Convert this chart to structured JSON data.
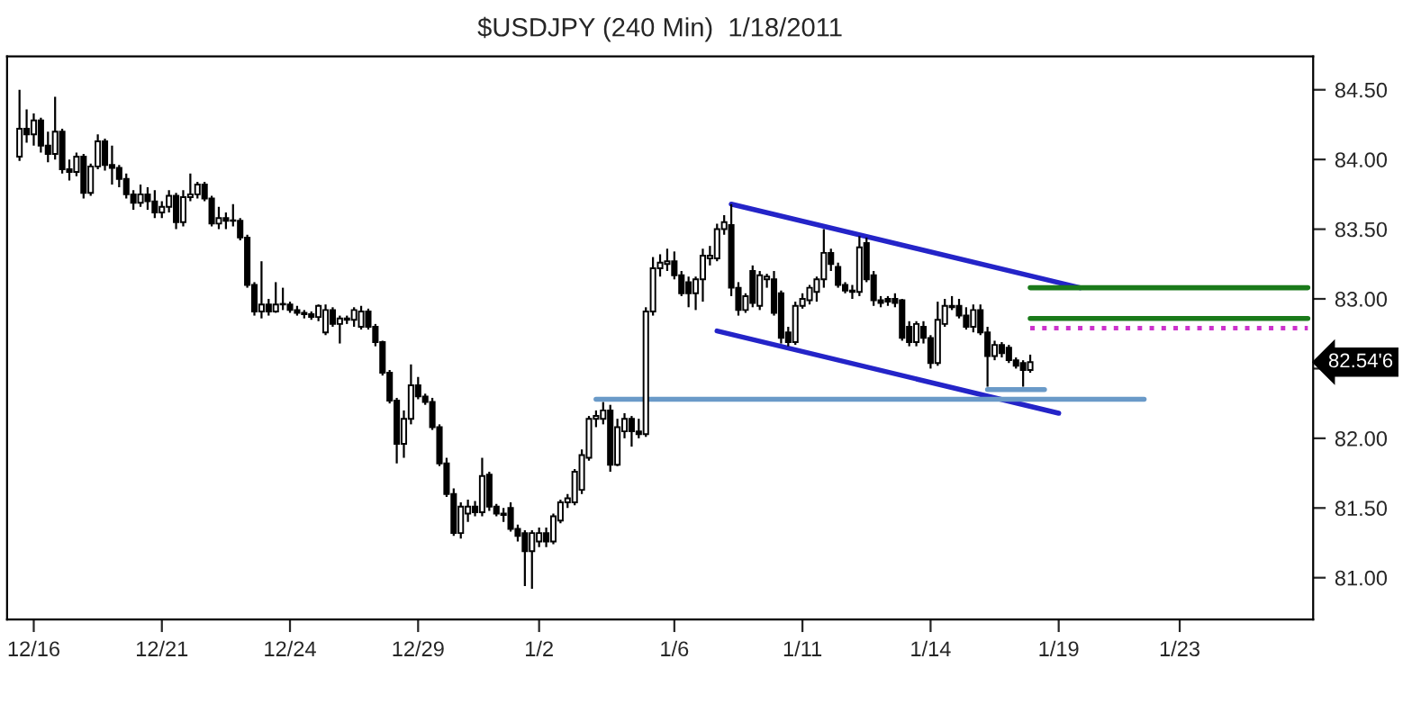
{
  "chart_data": {
    "type": "candlestick",
    "title": "$USDJPY (240 Min)  1/18/2011",
    "categories": [
      null,
      null,
      "12/16",
      null,
      null,
      null,
      null,
      null,
      null,
      null,
      null,
      null,
      null,
      null,
      null,
      null,
      null,
      null,
      null,
      null,
      "12/21",
      null,
      null,
      null,
      null,
      null,
      null,
      null,
      null,
      null,
      null,
      null,
      null,
      null,
      null,
      null,
      null,
      null,
      "12/24",
      null,
      null,
      null,
      null,
      null,
      null,
      null,
      null,
      null,
      null,
      null,
      null,
      null,
      null,
      null,
      null,
      null,
      "12/29",
      null,
      null,
      null,
      null,
      null,
      null,
      null,
      null,
      null,
      null,
      null,
      null,
      null,
      null,
      null,
      null,
      "1/2",
      null,
      null,
      null,
      null,
      null,
      null,
      null,
      null,
      null,
      null,
      null,
      null,
      null,
      null,
      null,
      null,
      null,
      null,
      "1/6",
      null,
      null,
      null,
      null,
      null,
      null,
      null,
      null,
      null,
      null,
      null,
      null,
      null,
      null,
      null,
      null,
      null,
      "1/11",
      null,
      null,
      null,
      null,
      null,
      null,
      null,
      null,
      null,
      null,
      null,
      null,
      null,
      null,
      null,
      null,
      null,
      "1/14",
      null,
      null,
      null,
      null,
      null,
      null,
      null,
      null,
      null,
      null,
      null,
      null,
      null,
      null,
      null,
      null,
      null,
      "1/19",
      null,
      null,
      null,
      null,
      null,
      null,
      null,
      null,
      null,
      null,
      null,
      null,
      null,
      null,
      null,
      null,
      "1/23",
      null,
      null,
      null,
      null,
      null,
      null,
      null,
      null,
      null,
      null,
      null,
      null,
      null,
      null,
      null,
      null,
      null,
      null
    ],
    "ohlc": [
      [
        84.02,
        84.5,
        83.99,
        84.22
      ],
      [
        84.22,
        84.36,
        84.12,
        84.18
      ],
      [
        84.18,
        84.33,
        84.1,
        84.28
      ],
      [
        84.28,
        84.3,
        84.05,
        84.1
      ],
      [
        84.1,
        84.2,
        83.98,
        84.04
      ],
      [
        84.04,
        84.45,
        84.0,
        84.2
      ],
      [
        84.2,
        84.22,
        83.9,
        83.93
      ],
      [
        83.93,
        84.0,
        83.85,
        83.91
      ],
      [
        83.91,
        84.05,
        83.88,
        84.02
      ],
      [
        84.02,
        84.04,
        83.72,
        83.76
      ],
      [
        83.76,
        83.97,
        83.74,
        83.95
      ],
      [
        83.95,
        84.18,
        83.93,
        84.13
      ],
      [
        84.13,
        84.15,
        83.92,
        83.96
      ],
      [
        83.96,
        84.1,
        83.82,
        83.94
      ],
      [
        83.94,
        83.96,
        83.8,
        83.86
      ],
      [
        83.86,
        83.9,
        83.72,
        83.75
      ],
      [
        83.75,
        83.78,
        83.64,
        83.69
      ],
      [
        83.69,
        83.82,
        83.66,
        83.75
      ],
      [
        83.75,
        83.8,
        83.64,
        83.7
      ],
      [
        83.7,
        83.78,
        83.58,
        83.62
      ],
      [
        83.62,
        83.7,
        83.58,
        83.66
      ],
      [
        83.66,
        83.78,
        83.62,
        83.74
      ],
      [
        83.74,
        83.76,
        83.5,
        83.55
      ],
      [
        83.55,
        83.78,
        83.52,
        83.73
      ],
      [
        83.73,
        83.9,
        83.7,
        83.75
      ],
      [
        83.75,
        83.84,
        83.72,
        83.82
      ],
      [
        83.82,
        83.84,
        83.7,
        83.72
      ],
      [
        83.72,
        83.74,
        83.52,
        83.54
      ],
      [
        83.54,
        83.66,
        83.5,
        83.58
      ],
      [
        83.58,
        83.62,
        83.5,
        83.56
      ],
      [
        83.56,
        83.68,
        83.52,
        83.56
      ],
      [
        83.56,
        83.58,
        83.42,
        83.44
      ],
      [
        83.44,
        83.46,
        83.08,
        83.1
      ],
      [
        83.1,
        83.12,
        82.88,
        82.91
      ],
      [
        82.91,
        83.27,
        82.86,
        82.96
      ],
      [
        82.96,
        83.0,
        82.88,
        82.91
      ],
      [
        82.91,
        83.12,
        82.9,
        82.96
      ],
      [
        82.96,
        83.08,
        82.92,
        82.96
      ],
      [
        82.96,
        82.98,
        82.9,
        82.92
      ],
      [
        82.92,
        82.95,
        82.88,
        82.9
      ],
      [
        82.9,
        82.92,
        82.86,
        82.89
      ],
      [
        82.89,
        82.91,
        82.85,
        82.87
      ],
      [
        82.87,
        82.96,
        82.84,
        82.95
      ],
      [
        82.76,
        82.96,
        82.74,
        82.92
      ],
      [
        82.92,
        82.94,
        82.8,
        82.82
      ],
      [
        82.82,
        82.88,
        82.68,
        82.86
      ],
      [
        82.86,
        82.88,
        82.82,
        82.85
      ],
      [
        82.85,
        82.94,
        82.8,
        82.92
      ],
      [
        82.8,
        82.95,
        82.78,
        82.91
      ],
      [
        82.91,
        82.93,
        82.78,
        82.8
      ],
      [
        82.8,
        82.82,
        82.66,
        82.69
      ],
      [
        82.69,
        82.7,
        82.45,
        82.47
      ],
      [
        82.47,
        82.49,
        82.25,
        82.27
      ],
      [
        82.27,
        82.29,
        81.82,
        81.96
      ],
      [
        81.96,
        82.2,
        81.86,
        82.14
      ],
      [
        82.14,
        82.53,
        82.1,
        82.38
      ],
      [
        82.38,
        82.44,
        82.28,
        82.3
      ],
      [
        82.3,
        82.32,
        82.24,
        82.26
      ],
      [
        82.26,
        82.29,
        82.06,
        82.08
      ],
      [
        82.08,
        82.1,
        81.8,
        81.82
      ],
      [
        81.82,
        81.86,
        81.58,
        81.6
      ],
      [
        81.6,
        81.64,
        81.3,
        81.32
      ],
      [
        81.32,
        81.54,
        81.28,
        81.51
      ],
      [
        81.46,
        81.56,
        81.4,
        81.51
      ],
      [
        81.51,
        81.55,
        81.44,
        81.47
      ],
      [
        81.47,
        81.86,
        81.44,
        81.73
      ],
      [
        81.74,
        81.76,
        81.48,
        81.51
      ],
      [
        81.51,
        81.53,
        81.44,
        81.46
      ],
      [
        81.46,
        81.5,
        81.4,
        81.45
      ],
      [
        81.5,
        81.54,
        81.33,
        81.35
      ],
      [
        81.35,
        81.38,
        81.26,
        81.3
      ],
      [
        81.32,
        81.34,
        80.94,
        81.19
      ],
      [
        81.19,
        81.34,
        80.92,
        81.32
      ],
      [
        81.26,
        81.36,
        81.22,
        81.32
      ],
      [
        81.32,
        81.36,
        81.22,
        81.26
      ],
      [
        81.26,
        81.46,
        81.24,
        81.44
      ],
      [
        81.41,
        81.56,
        81.39,
        81.54
      ],
      [
        81.54,
        81.6,
        81.5,
        81.57
      ],
      [
        81.54,
        81.78,
        81.52,
        81.76
      ],
      [
        81.63,
        81.92,
        81.6,
        81.88
      ],
      [
        81.86,
        82.16,
        81.84,
        82.14
      ],
      [
        82.14,
        82.2,
        82.08,
        82.16
      ],
      [
        82.14,
        82.26,
        82.1,
        82.2
      ],
      [
        82.2,
        82.24,
        81.76,
        81.81
      ],
      [
        81.81,
        82.14,
        81.8,
        82.08
      ],
      [
        82.05,
        82.18,
        82.0,
        82.14
      ],
      [
        82.14,
        82.16,
        81.94,
        82.05
      ],
      [
        82.05,
        82.14,
        82.0,
        82.03
      ],
      [
        82.03,
        82.94,
        82.01,
        82.91
      ],
      [
        82.91,
        83.3,
        82.88,
        83.22
      ],
      [
        83.22,
        83.32,
        83.16,
        83.26
      ],
      [
        83.25,
        83.36,
        83.2,
        83.27
      ],
      [
        83.27,
        83.34,
        83.14,
        83.17
      ],
      [
        83.17,
        83.2,
        83.02,
        83.04
      ],
      [
        83.12,
        83.16,
        82.94,
        83.04
      ],
      [
        83.04,
        83.16,
        82.92,
        83.14
      ],
      [
        83.14,
        83.36,
        82.98,
        83.31
      ],
      [
        83.29,
        83.38,
        83.24,
        83.31
      ],
      [
        83.29,
        83.54,
        83.27,
        83.5
      ],
      [
        83.5,
        83.6,
        83.46,
        83.55
      ],
      [
        83.53,
        83.68,
        83.02,
        83.08
      ],
      [
        83.08,
        83.12,
        82.88,
        82.92
      ],
      [
        82.92,
        83.04,
        82.9,
        83.02
      ],
      [
        83.2,
        83.24,
        82.94,
        82.97
      ],
      [
        82.95,
        83.2,
        82.92,
        83.17
      ],
      [
        83.14,
        83.18,
        83.08,
        83.16
      ],
      [
        83.14,
        83.2,
        82.88,
        82.9
      ],
      [
        83.04,
        83.06,
        82.68,
        82.72
      ],
      [
        82.76,
        82.8,
        82.66,
        82.69
      ],
      [
        82.69,
        82.98,
        82.67,
        82.95
      ],
      [
        82.95,
        83.04,
        82.93,
        83.0
      ],
      [
        82.99,
        83.1,
        82.96,
        83.08
      ],
      [
        83.05,
        83.16,
        82.98,
        83.14
      ],
      [
        83.14,
        83.5,
        83.08,
        83.33
      ],
      [
        83.33,
        83.36,
        83.2,
        83.25
      ],
      [
        83.23,
        83.26,
        83.08,
        83.1
      ],
      [
        83.1,
        83.12,
        83.04,
        83.06
      ],
      [
        83.06,
        83.1,
        83.0,
        83.05
      ],
      [
        83.05,
        83.45,
        83.02,
        83.37
      ],
      [
        83.4,
        83.44,
        83.12,
        83.14
      ],
      [
        83.17,
        83.2,
        82.95,
        82.99
      ],
      [
        82.99,
        83.02,
        82.94,
        82.97
      ],
      [
        83.0,
        83.02,
        82.95,
        82.98
      ],
      [
        83.0,
        83.04,
        82.94,
        82.97
      ],
      [
        82.99,
        83.0,
        82.7,
        82.72
      ],
      [
        82.8,
        82.84,
        82.66,
        82.69
      ],
      [
        82.69,
        82.84,
        82.66,
        82.82
      ],
      [
        82.8,
        82.84,
        82.68,
        82.72
      ],
      [
        82.72,
        82.74,
        82.5,
        82.54
      ],
      [
        82.54,
        82.98,
        82.52,
        82.85
      ],
      [
        82.82,
        83.0,
        82.8,
        82.95
      ],
      [
        82.94,
        83.02,
        82.92,
        82.95
      ],
      [
        82.95,
        83.0,
        82.86,
        82.88
      ],
      [
        82.88,
        82.94,
        82.78,
        82.8
      ],
      [
        82.8,
        82.96,
        82.76,
        82.92
      ],
      [
        82.92,
        82.96,
        82.74,
        82.76
      ],
      [
        82.76,
        82.8,
        82.37,
        82.59
      ],
      [
        82.59,
        82.7,
        82.56,
        82.67
      ],
      [
        82.67,
        82.69,
        82.58,
        82.61
      ],
      [
        82.65,
        82.67,
        82.54,
        82.56
      ],
      [
        82.56,
        82.58,
        82.5,
        82.52
      ],
      [
        82.54,
        82.56,
        82.37,
        82.49
      ],
      [
        82.49,
        82.6,
        82.47,
        82.546
      ],
      null,
      null,
      null,
      null,
      null,
      null,
      null,
      null,
      null,
      null,
      null,
      null,
      null,
      null,
      null,
      null,
      null,
      null,
      null,
      null,
      null,
      null,
      null,
      null,
      null,
      null,
      null,
      null,
      null,
      null,
      null,
      null,
      null,
      null,
      null,
      null,
      null,
      null,
      null
    ],
    "series": [
      {
        "type": "line",
        "color": "#2424c8",
        "values": [
          null,
          null,
          null,
          null,
          null,
          null,
          null,
          null,
          null,
          null,
          null,
          null,
          null,
          null,
          null,
          null,
          null,
          null,
          null,
          null,
          null,
          null,
          null,
          null,
          null,
          null,
          null,
          null,
          null,
          null,
          null,
          null,
          null,
          null,
          null,
          null,
          null,
          null,
          null,
          null,
          null,
          null,
          null,
          null,
          null,
          null,
          null,
          null,
          null,
          null,
          null,
          null,
          null,
          null,
          null,
          null,
          null,
          null,
          null,
          null,
          null,
          null,
          null,
          null,
          null,
          null,
          null,
          null,
          null,
          null,
          null,
          null,
          null,
          null,
          null,
          null,
          null,
          null,
          null,
          null,
          null,
          null,
          null,
          null,
          null,
          null,
          null,
          null,
          null,
          null,
          null,
          null,
          null,
          null,
          null,
          null,
          null,
          null,
          null,
          null,
          83.68,
          null,
          null,
          null,
          null,
          null,
          null,
          null,
          null,
          null,
          null,
          null,
          null,
          null,
          null,
          null,
          null,
          null,
          null,
          null,
          null,
          null,
          null,
          null,
          null,
          null,
          null,
          null,
          null,
          null,
          null,
          null,
          null,
          null,
          null,
          null,
          null,
          null,
          null,
          null,
          null,
          null,
          null,
          null,
          null,
          null,
          null,
          null,
          null,
          83.08,
          null,
          null,
          null,
          null,
          null,
          null,
          null,
          null,
          null,
          null,
          null,
          null,
          null,
          null,
          null,
          null,
          null,
          null,
          null,
          null,
          null,
          null,
          null,
          null,
          null,
          null,
          null,
          null,
          null,
          null,
          null,
          null
        ]
      },
      {
        "type": "line",
        "color": "#2424c8",
        "values": [
          null,
          null,
          null,
          null,
          null,
          null,
          null,
          null,
          null,
          null,
          null,
          null,
          null,
          null,
          null,
          null,
          null,
          null,
          null,
          null,
          null,
          null,
          null,
          null,
          null,
          null,
          null,
          null,
          null,
          null,
          null,
          null,
          null,
          null,
          null,
          null,
          null,
          null,
          null,
          null,
          null,
          null,
          null,
          null,
          null,
          null,
          null,
          null,
          null,
          null,
          null,
          null,
          null,
          null,
          null,
          null,
          null,
          null,
          null,
          null,
          null,
          null,
          null,
          null,
          null,
          null,
          null,
          null,
          null,
          null,
          null,
          null,
          null,
          null,
          null,
          null,
          null,
          null,
          null,
          null,
          null,
          null,
          null,
          null,
          null,
          null,
          null,
          null,
          null,
          null,
          null,
          null,
          null,
          null,
          null,
          null,
          null,
          null,
          82.77,
          null,
          null,
          null,
          null,
          null,
          null,
          null,
          null,
          null,
          null,
          null,
          null,
          null,
          null,
          null,
          null,
          null,
          null,
          null,
          null,
          null,
          null,
          null,
          null,
          null,
          null,
          null,
          null,
          null,
          null,
          null,
          null,
          null,
          null,
          null,
          null,
          null,
          null,
          null,
          null,
          null,
          null,
          null,
          null,
          null,
          null,
          null,
          82.18,
          null,
          null,
          null,
          null,
          null,
          null,
          null,
          null,
          null,
          null,
          null,
          null,
          null,
          null,
          null,
          null,
          null,
          null,
          null,
          null,
          null,
          null,
          null,
          null,
          null,
          null,
          null,
          null,
          null,
          null,
          null,
          null,
          null,
          null,
          null
        ]
      },
      {
        "type": "line",
        "color": "#1a7a1a",
        "values": [
          null,
          null,
          null,
          null,
          null,
          null,
          null,
          null,
          null,
          null,
          null,
          null,
          null,
          null,
          null,
          null,
          null,
          null,
          null,
          null,
          null,
          null,
          null,
          null,
          null,
          null,
          null,
          null,
          null,
          null,
          null,
          null,
          null,
          null,
          null,
          null,
          null,
          null,
          null,
          null,
          null,
          null,
          null,
          null,
          null,
          null,
          null,
          null,
          null,
          null,
          null,
          null,
          null,
          null,
          null,
          null,
          null,
          null,
          null,
          null,
          null,
          null,
          null,
          null,
          null,
          null,
          null,
          null,
          null,
          null,
          null,
          null,
          null,
          null,
          null,
          null,
          null,
          null,
          null,
          null,
          null,
          null,
          null,
          null,
          null,
          null,
          null,
          null,
          null,
          null,
          null,
          null,
          null,
          null,
          null,
          null,
          null,
          null,
          null,
          null,
          null,
          null,
          null,
          null,
          null,
          null,
          null,
          null,
          null,
          null,
          null,
          null,
          null,
          null,
          null,
          null,
          null,
          null,
          null,
          null,
          null,
          null,
          null,
          null,
          null,
          null,
          null,
          null,
          null,
          null,
          null,
          null,
          null,
          null,
          null,
          null,
          null,
          null,
          null,
          null,
          null,
          null,
          83.08,
          null,
          null,
          null,
          null,
          null,
          null,
          null,
          null,
          null,
          null,
          null,
          null,
          null,
          null,
          null,
          null,
          null,
          null,
          null,
          null,
          null,
          null,
          null,
          null,
          null,
          null,
          null,
          null,
          null,
          null,
          null,
          null,
          null,
          null,
          null,
          null,
          null,
          null,
          83.08
        ]
      },
      {
        "type": "line",
        "color": "#1a7a1a",
        "values": [
          null,
          null,
          null,
          null,
          null,
          null,
          null,
          null,
          null,
          null,
          null,
          null,
          null,
          null,
          null,
          null,
          null,
          null,
          null,
          null,
          null,
          null,
          null,
          null,
          null,
          null,
          null,
          null,
          null,
          null,
          null,
          null,
          null,
          null,
          null,
          null,
          null,
          null,
          null,
          null,
          null,
          null,
          null,
          null,
          null,
          null,
          null,
          null,
          null,
          null,
          null,
          null,
          null,
          null,
          null,
          null,
          null,
          null,
          null,
          null,
          null,
          null,
          null,
          null,
          null,
          null,
          null,
          null,
          null,
          null,
          null,
          null,
          null,
          null,
          null,
          null,
          null,
          null,
          null,
          null,
          null,
          null,
          null,
          null,
          null,
          null,
          null,
          null,
          null,
          null,
          null,
          null,
          null,
          null,
          null,
          null,
          null,
          null,
          null,
          null,
          null,
          null,
          null,
          null,
          null,
          null,
          null,
          null,
          null,
          null,
          null,
          null,
          null,
          null,
          null,
          null,
          null,
          null,
          null,
          null,
          null,
          null,
          null,
          null,
          null,
          null,
          null,
          null,
          null,
          null,
          null,
          null,
          null,
          null,
          null,
          null,
          null,
          null,
          null,
          null,
          null,
          null,
          82.86,
          null,
          null,
          null,
          null,
          null,
          null,
          null,
          null,
          null,
          null,
          null,
          null,
          null,
          null,
          null,
          null,
          null,
          null,
          null,
          null,
          null,
          null,
          null,
          null,
          null,
          null,
          null,
          null,
          null,
          null,
          null,
          null,
          null,
          null,
          null,
          null,
          null,
          null,
          82.86
        ]
      },
      {
        "type": "line",
        "color": "#cc33cc",
        "line_style": "dotted",
        "values": [
          null,
          null,
          null,
          null,
          null,
          null,
          null,
          null,
          null,
          null,
          null,
          null,
          null,
          null,
          null,
          null,
          null,
          null,
          null,
          null,
          null,
          null,
          null,
          null,
          null,
          null,
          null,
          null,
          null,
          null,
          null,
          null,
          null,
          null,
          null,
          null,
          null,
          null,
          null,
          null,
          null,
          null,
          null,
          null,
          null,
          null,
          null,
          null,
          null,
          null,
          null,
          null,
          null,
          null,
          null,
          null,
          null,
          null,
          null,
          null,
          null,
          null,
          null,
          null,
          null,
          null,
          null,
          null,
          null,
          null,
          null,
          null,
          null,
          null,
          null,
          null,
          null,
          null,
          null,
          null,
          null,
          null,
          null,
          null,
          null,
          null,
          null,
          null,
          null,
          null,
          null,
          null,
          null,
          null,
          null,
          null,
          null,
          null,
          null,
          null,
          null,
          null,
          null,
          null,
          null,
          null,
          null,
          null,
          null,
          null,
          null,
          null,
          null,
          null,
          null,
          null,
          null,
          null,
          null,
          null,
          null,
          null,
          null,
          null,
          null,
          null,
          null,
          null,
          null,
          null,
          null,
          null,
          null,
          null,
          null,
          null,
          null,
          null,
          null,
          null,
          null,
          null,
          82.79,
          null,
          null,
          null,
          null,
          null,
          null,
          null,
          null,
          null,
          null,
          null,
          null,
          null,
          null,
          null,
          null,
          null,
          null,
          null,
          null,
          null,
          null,
          null,
          null,
          null,
          null,
          null,
          null,
          null,
          null,
          null,
          null,
          null,
          null,
          null,
          null,
          null,
          null,
          82.79
        ]
      },
      {
        "type": "line",
        "color": "#6a9ac8",
        "values": [
          null,
          null,
          null,
          null,
          null,
          null,
          null,
          null,
          null,
          null,
          null,
          null,
          null,
          null,
          null,
          null,
          null,
          null,
          null,
          null,
          null,
          null,
          null,
          null,
          null,
          null,
          null,
          null,
          null,
          null,
          null,
          null,
          null,
          null,
          null,
          null,
          null,
          null,
          null,
          null,
          null,
          null,
          null,
          null,
          null,
          null,
          null,
          null,
          null,
          null,
          null,
          null,
          null,
          null,
          null,
          null,
          null,
          null,
          null,
          null,
          null,
          null,
          null,
          null,
          null,
          null,
          null,
          null,
          null,
          null,
          null,
          null,
          null,
          null,
          null,
          null,
          null,
          null,
          null,
          null,
          null,
          82.28,
          null,
          null,
          null,
          null,
          null,
          null,
          null,
          null,
          null,
          null,
          null,
          null,
          null,
          null,
          null,
          null,
          null,
          null,
          null,
          null,
          null,
          null,
          null,
          null,
          null,
          null,
          null,
          null,
          null,
          null,
          null,
          null,
          null,
          null,
          null,
          null,
          null,
          null,
          null,
          null,
          null,
          null,
          null,
          null,
          null,
          null,
          null,
          null,
          null,
          null,
          null,
          null,
          null,
          null,
          null,
          null,
          null,
          null,
          null,
          null,
          null,
          null,
          null,
          null,
          null,
          null,
          null,
          null,
          null,
          null,
          null,
          null,
          null,
          null,
          null,
          null,
          82.28,
          null,
          null,
          null,
          null,
          null,
          null,
          null,
          null,
          null,
          null,
          null,
          null,
          null,
          null,
          null,
          null,
          null,
          null,
          null,
          null,
          null,
          null,
          null
        ]
      },
      {
        "type": "line",
        "color": "#6a9ac8",
        "values": [
          null,
          null,
          null,
          null,
          null,
          null,
          null,
          null,
          null,
          null,
          null,
          null,
          null,
          null,
          null,
          null,
          null,
          null,
          null,
          null,
          null,
          null,
          null,
          null,
          null,
          null,
          null,
          null,
          null,
          null,
          null,
          null,
          null,
          null,
          null,
          null,
          null,
          null,
          null,
          null,
          null,
          null,
          null,
          null,
          null,
          null,
          null,
          null,
          null,
          null,
          null,
          null,
          null,
          null,
          null,
          null,
          null,
          null,
          null,
          null,
          null,
          null,
          null,
          null,
          null,
          null,
          null,
          null,
          null,
          null,
          null,
          null,
          null,
          null,
          null,
          null,
          null,
          null,
          null,
          null,
          null,
          null,
          null,
          null,
          null,
          null,
          null,
          null,
          null,
          null,
          null,
          null,
          null,
          null,
          null,
          null,
          null,
          null,
          null,
          null,
          null,
          null,
          null,
          null,
          null,
          null,
          null,
          null,
          null,
          null,
          null,
          null,
          null,
          null,
          null,
          null,
          null,
          null,
          null,
          null,
          null,
          null,
          null,
          null,
          null,
          null,
          null,
          null,
          null,
          null,
          null,
          null,
          null,
          null,
          null,
          null,
          82.35,
          null,
          null,
          null,
          null,
          null,
          null,
          null,
          82.35,
          null,
          null,
          null,
          null,
          null,
          null,
          null,
          null,
          null,
          null,
          null,
          null,
          null,
          null,
          null,
          null,
          null,
          null,
          null,
          null,
          null,
          null,
          null,
          null,
          null,
          null,
          null,
          null,
          null,
          null,
          null,
          null,
          null,
          null,
          null,
          null,
          null
        ]
      }
    ],
    "ylim": [
      80.7,
      84.74
    ],
    "yticks": [
      {
        "value": 81.0,
        "label": "81.00"
      },
      {
        "value": 81.5,
        "label": "81.50"
      },
      {
        "value": 82.0,
        "label": "82.00"
      },
      {
        "value": 82.5,
        "label": null
      },
      {
        "value": 83.0,
        "label": "83.00"
      },
      {
        "value": 83.5,
        "label": "83.50"
      },
      {
        "value": 84.0,
        "label": "84.00"
      },
      {
        "value": 84.5,
        "label": "84.50"
      }
    ],
    "annotations": [
      "82.54'6"
    ],
    "grid": false,
    "legend": false
  }
}
